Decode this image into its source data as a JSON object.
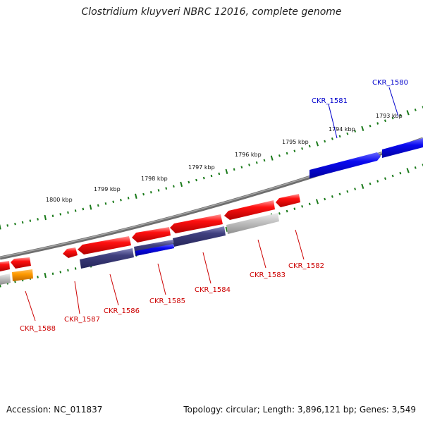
{
  "title": "Clostridium kluyveri NBRC 12016, complete genome",
  "footer": {
    "accession": "Accession: NC_011837",
    "summary": "Topology: circular; Length: 3,896,121 bp; Genes: 3,549"
  },
  "colors": {
    "forward_gene": "#ff0000",
    "reverse_gene": "#ff0000",
    "highlight_gene": "#0000dd",
    "muted_gene": "#3a3a8a",
    "gray_gene": "#bbbbbb",
    "orange_gene": "#ff9900",
    "backbone": "#888888",
    "tick": "#1a7a1a",
    "label_red": "#cc0000",
    "label_blue": "#0000cc"
  },
  "scale_ticks": [
    "1800 kbp",
    "1799 kbp",
    "1798 kbp",
    "1797 kbp",
    "1796 kbp",
    "1795 kbp",
    "1794 kbp",
    "1793 kbp"
  ],
  "gene_labels": [
    {
      "text": "CKR_1580",
      "color": "blue"
    },
    {
      "text": "CKR_1581",
      "color": "blue"
    },
    {
      "text": "CKR_1582",
      "color": "red"
    },
    {
      "text": "CKR_1583",
      "color": "red"
    },
    {
      "text": "CKR_1584",
      "color": "red"
    },
    {
      "text": "CKR_1585",
      "color": "red"
    },
    {
      "text": "CKR_1586",
      "color": "red"
    },
    {
      "text": "CKR_1587",
      "color": "red"
    },
    {
      "text": "CKR_1588",
      "color": "red"
    }
  ]
}
